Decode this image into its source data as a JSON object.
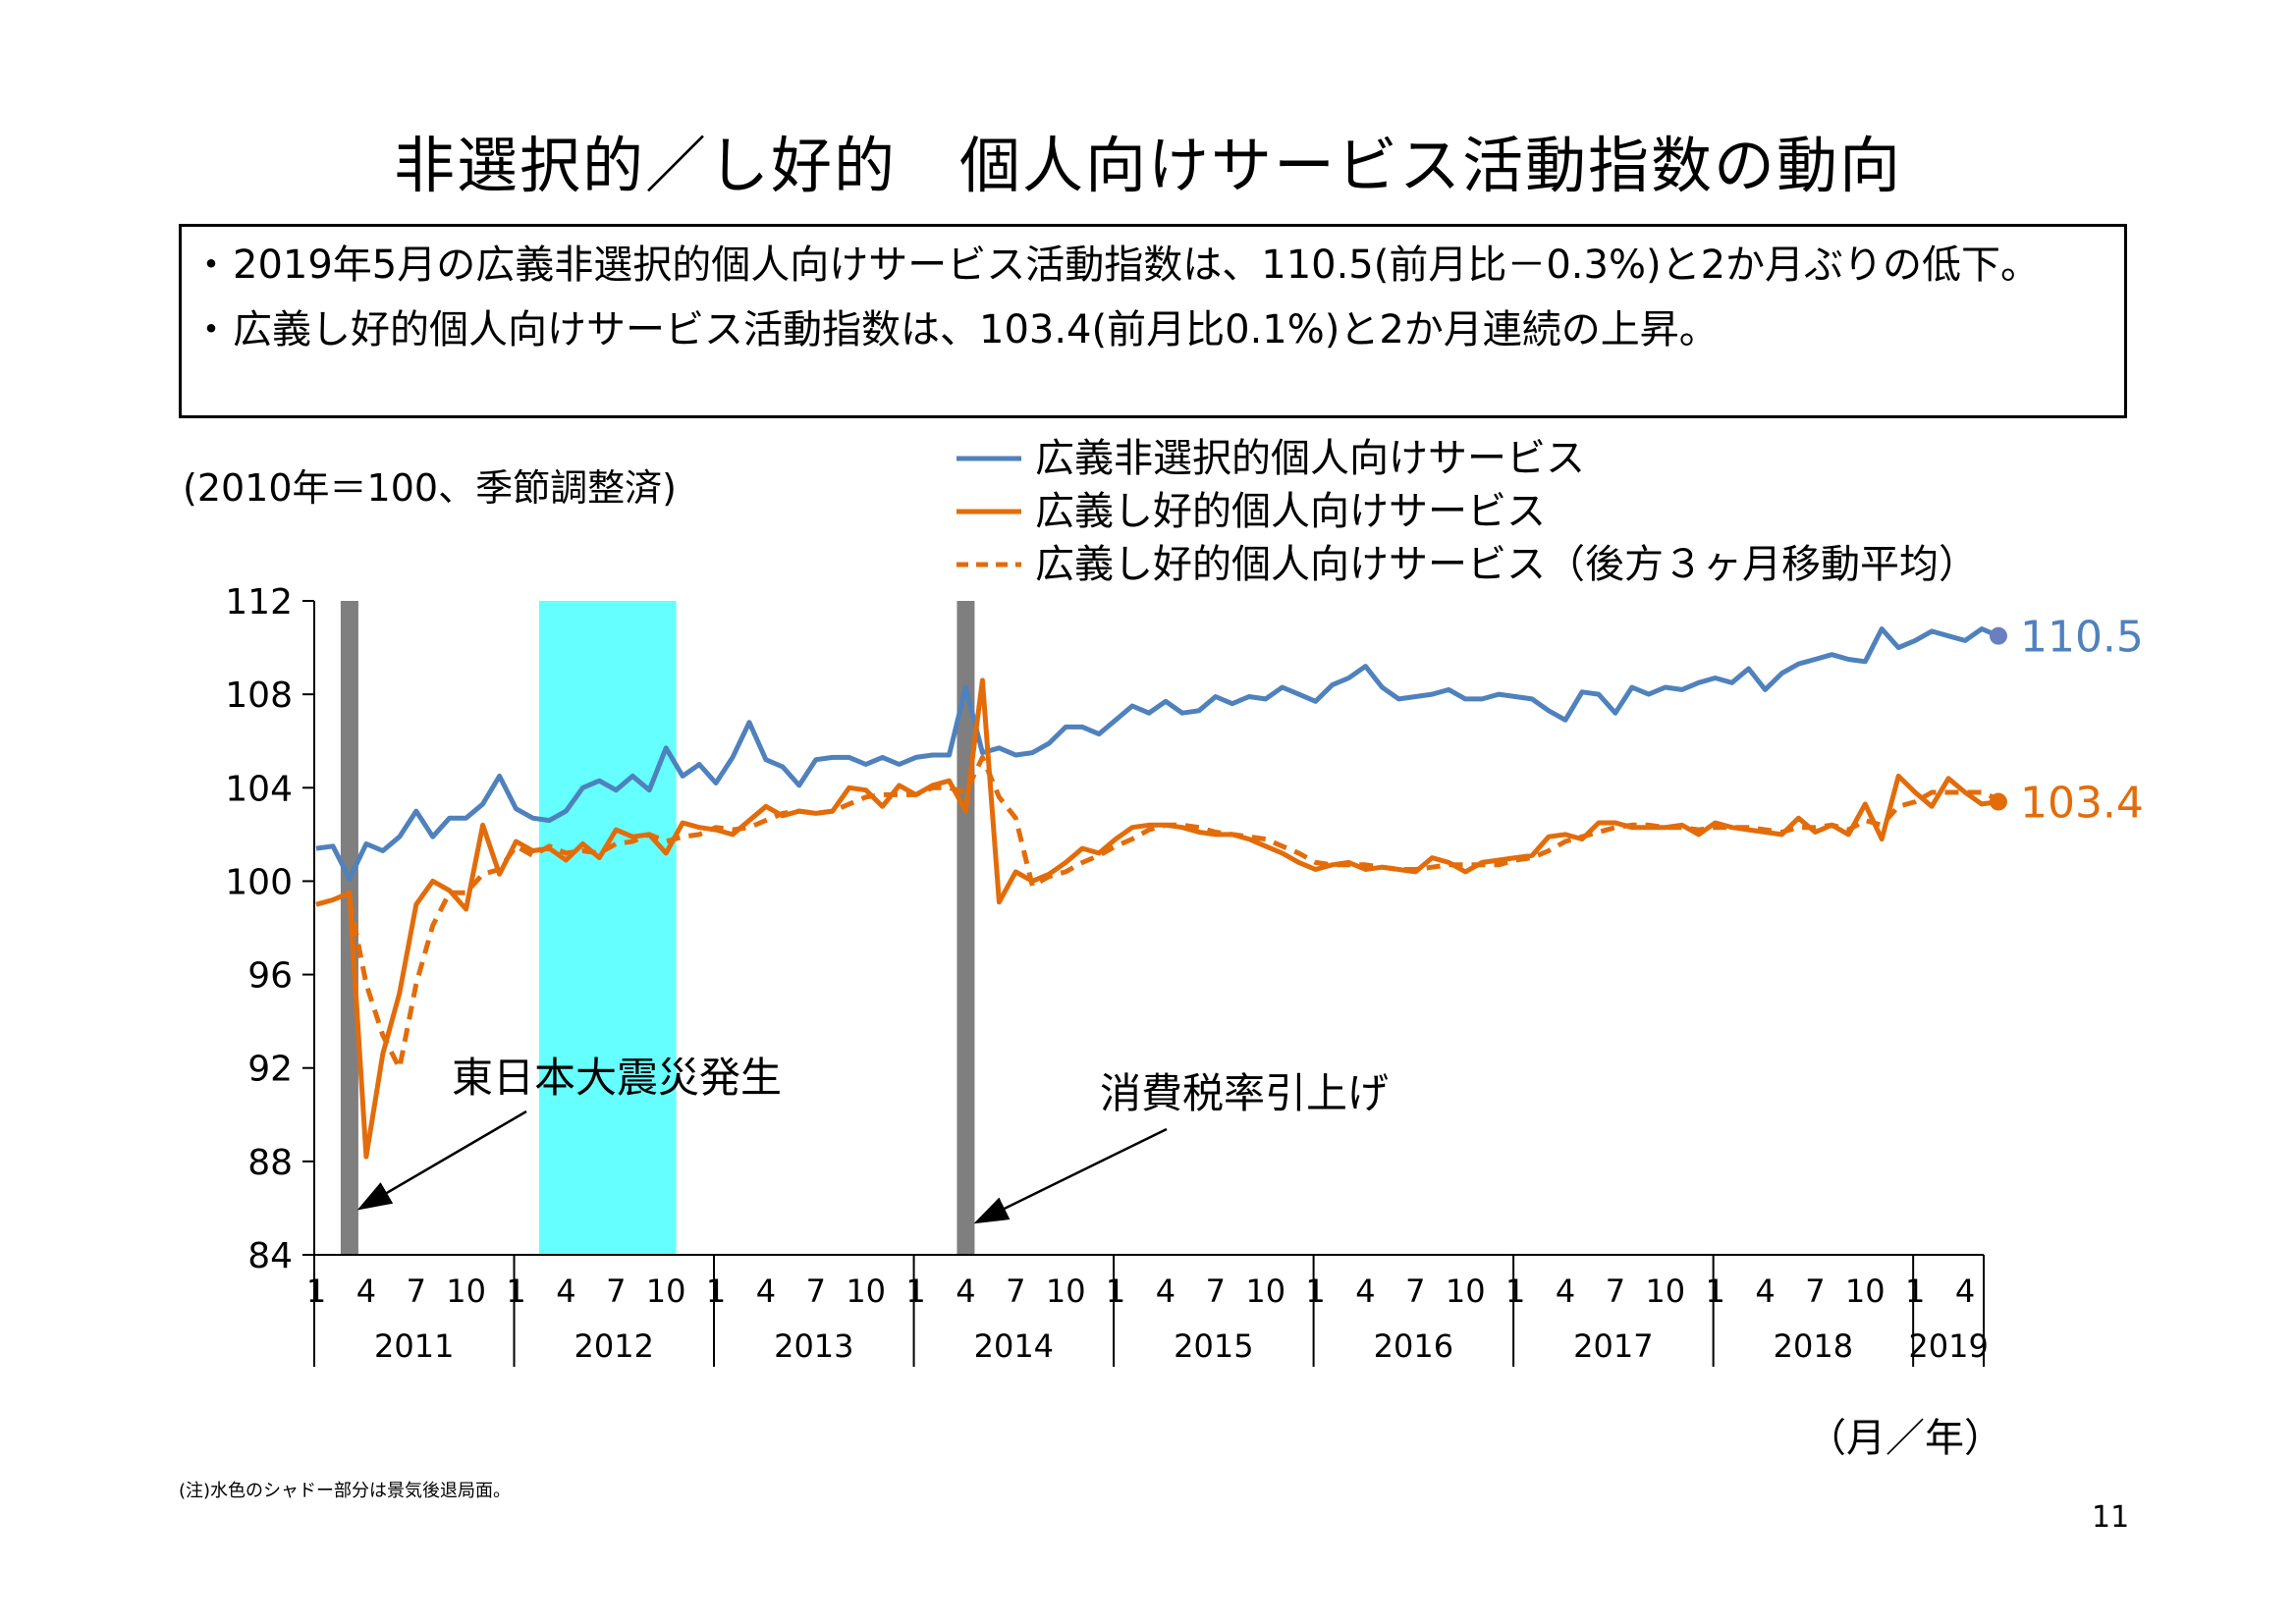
{
  "page": {
    "title": "非選択的／し好的　個人向けサービス活動指数の動向",
    "summary": [
      "2019年5月の広義非選択的個人向けサービス活動指数は、110.5(前月比－0.3%)と2か月ぶりの低下。",
      "広義し好的個人向けサービス活動指数は、103.4(前月比0.1%)と2か月連続の上昇。"
    ],
    "unit_note": "(2010年＝100、季節調整済)",
    "x_unit": "（月／年）",
    "footnote": "(注)水色のシャドー部分は景気後退局面。",
    "page_number": "11",
    "colors": {
      "blue": "#4f81bd",
      "orange": "#e36c0a",
      "gray": "#7f7f7f",
      "cyan": "#66ffff"
    }
  },
  "chart_data": {
    "type": "line",
    "y_ticks": [
      "112",
      "108",
      "104",
      "100",
      "96",
      "92",
      "88",
      "84"
    ],
    "ylim": [
      84,
      112
    ],
    "xlim": [
      1,
      101
    ],
    "month_tick_labels": [
      "1",
      "4",
      "7",
      "10"
    ],
    "years": [
      "2011",
      "2012",
      "2013",
      "2014",
      "2015",
      "2016",
      "2017",
      "2018",
      "2019"
    ],
    "last_year_month_labels": [
      "1",
      "4"
    ],
    "series": [
      {
        "name": "広義非選択的個人向けサービス",
        "style": "solid",
        "color": "#4f81bd",
        "end_label": "110.5",
        "values": [
          101.4,
          101.5,
          100.1,
          101.6,
          101.3,
          101.9,
          103.0,
          101.9,
          102.7,
          102.7,
          103.3,
          104.5,
          103.1,
          102.7,
          102.6,
          103.0,
          104.0,
          104.3,
          103.9,
          104.5,
          103.9,
          105.7,
          104.5,
          105.0,
          104.2,
          105.3,
          106.8,
          105.2,
          104.9,
          104.1,
          105.2,
          105.3,
          105.3,
          105.0,
          105.3,
          105.0,
          105.3,
          105.4,
          105.4,
          108.3,
          105.5,
          105.7,
          105.4,
          105.5,
          105.9,
          106.6,
          106.6,
          106.3,
          106.9,
          107.5,
          107.2,
          107.7,
          107.2,
          107.3,
          107.9,
          107.6,
          107.9,
          107.8,
          108.3,
          108.0,
          107.7,
          108.4,
          108.7,
          109.2,
          108.3,
          107.8,
          107.9,
          108.0,
          108.2,
          107.8,
          107.8,
          108.0,
          107.9,
          107.8,
          107.3,
          106.9,
          108.1,
          108.0,
          107.2,
          108.3,
          108.0,
          108.3,
          108.2,
          108.5,
          108.7,
          108.5,
          109.1,
          108.2,
          108.9,
          109.3,
          109.5,
          109.7,
          109.5,
          109.4,
          110.8,
          110.0,
          110.3,
          110.7,
          110.5,
          110.3,
          110.8,
          110.5
        ]
      },
      {
        "name": "広義し好的個人向けサービス",
        "style": "solid",
        "color": "#e36c0a",
        "end_label": "103.4",
        "values": [
          99.0,
          99.2,
          99.5,
          88.2,
          92.6,
          95.2,
          99.0,
          100.0,
          99.6,
          98.8,
          102.4,
          100.3,
          101.7,
          101.3,
          101.4,
          100.9,
          101.6,
          101.0,
          102.2,
          101.9,
          102.0,
          101.2,
          102.5,
          102.3,
          102.2,
          102.0,
          102.6,
          103.2,
          102.8,
          103.0,
          102.9,
          103.0,
          104.0,
          103.9,
          103.2,
          104.1,
          103.7,
          104.1,
          104.3,
          103.0,
          108.6,
          99.1,
          100.4,
          100.0,
          100.3,
          100.8,
          101.4,
          101.2,
          101.8,
          102.3,
          102.4,
          102.4,
          102.3,
          102.1,
          102.0,
          102.0,
          101.8,
          101.5,
          101.2,
          100.8,
          100.5,
          100.7,
          100.8,
          100.5,
          100.6,
          100.5,
          100.4,
          101.0,
          100.8,
          100.4,
          100.8,
          100.9,
          101.0,
          101.1,
          101.9,
          102.0,
          101.8,
          102.5,
          102.5,
          102.3,
          102.3,
          102.3,
          102.4,
          102.0,
          102.5,
          102.3,
          102.2,
          102.1,
          102.0,
          102.7,
          102.1,
          102.4,
          102.0,
          103.3,
          101.8,
          104.5,
          103.8,
          103.2,
          104.4,
          103.8,
          103.3,
          103.4
        ]
      },
      {
        "name": "広義し好的個人向けサービス（後方３ヶ月移動平均）",
        "style": "dashed",
        "color": "#e36c0a",
        "values": [
          null,
          null,
          99.2,
          95.6,
          93.4,
          92.0,
          95.6,
          98.1,
          99.5,
          99.5,
          100.3,
          100.5,
          101.5,
          101.1,
          101.5,
          101.2,
          101.3,
          101.2,
          101.6,
          101.7,
          102.0,
          101.7,
          101.9,
          102.0,
          102.3,
          102.2,
          102.3,
          102.6,
          102.9,
          103.0,
          102.9,
          103.0,
          103.3,
          103.6,
          103.7,
          103.7,
          103.7,
          104.0,
          104.0,
          103.8,
          105.3,
          103.6,
          102.7,
          99.8,
          100.2,
          100.4,
          100.8,
          101.1,
          101.5,
          101.8,
          102.2,
          102.4,
          102.4,
          102.3,
          102.1,
          102.0,
          101.9,
          101.8,
          101.5,
          101.2,
          100.8,
          100.7,
          100.7,
          100.7,
          100.6,
          100.5,
          100.5,
          100.6,
          100.7,
          100.7,
          100.7,
          100.7,
          100.9,
          101.0,
          101.3,
          101.7,
          101.9,
          102.1,
          102.3,
          102.4,
          102.4,
          102.3,
          102.3,
          102.2,
          102.3,
          102.3,
          102.3,
          102.2,
          102.1,
          102.3,
          102.3,
          102.4,
          102.2,
          102.6,
          102.4,
          103.2,
          103.4,
          103.8,
          103.8,
          103.8,
          103.8,
          103.5
        ]
      }
    ],
    "shaded_regions": [
      {
        "kind": "gray",
        "start": 3,
        "end": 3
      },
      {
        "kind": "cyan",
        "start": 15,
        "end": 22
      },
      {
        "kind": "gray",
        "start": 40,
        "end": 40
      }
    ],
    "annotations": [
      {
        "text": "東日本大震災発生",
        "target_month": 3
      },
      {
        "text": "消費税率引上げ",
        "target_month": 40
      }
    ]
  }
}
